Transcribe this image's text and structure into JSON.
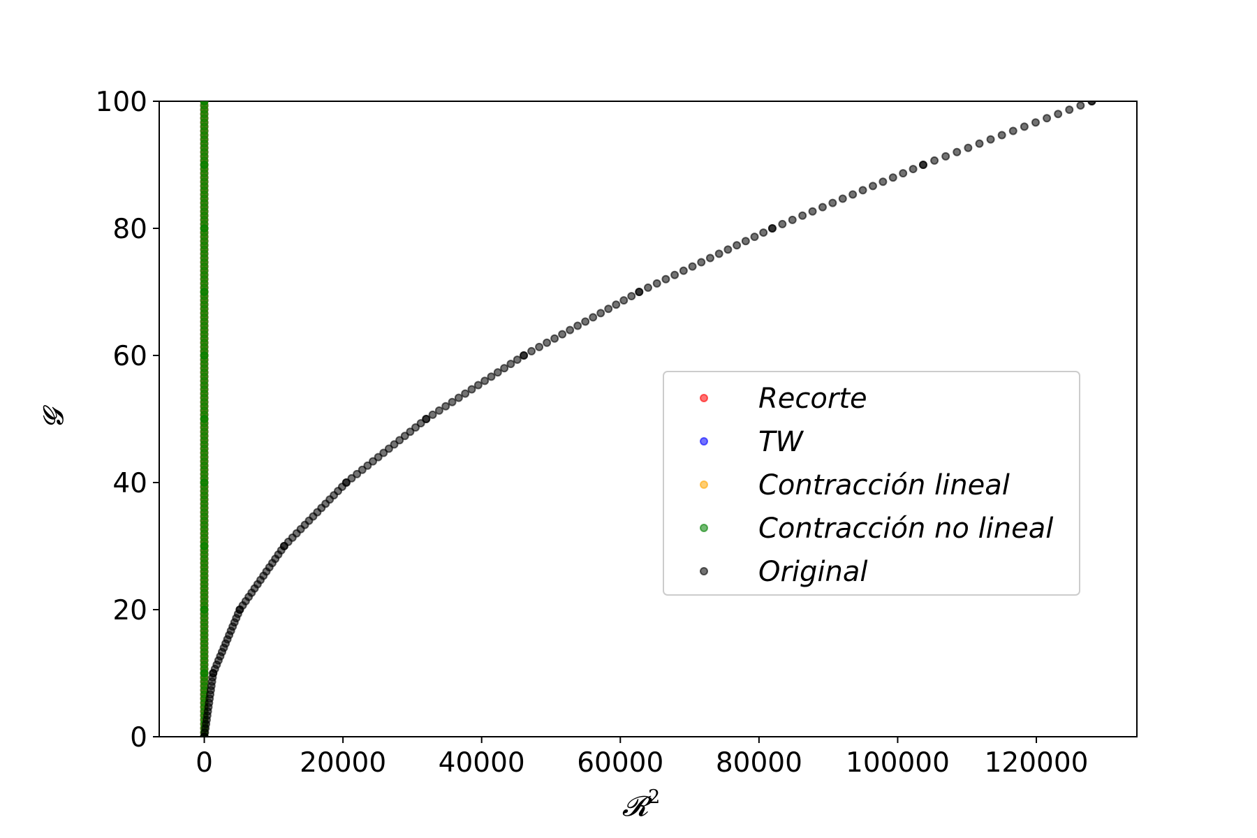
{
  "chart_data": {
    "type": "scatter",
    "xlabel": "𝓡",
    "xlabel_superscript": "2",
    "ylabel": "𝓖",
    "xlim": [
      -6500,
      134500
    ],
    "ylim": [
      0,
      100
    ],
    "xticks": [
      0,
      20000,
      40000,
      60000,
      80000,
      100000,
      120000
    ],
    "xtick_labels": [
      "0",
      "20000",
      "40000",
      "60000",
      "80000",
      "100000",
      "120000"
    ],
    "yticks": [
      0,
      20,
      40,
      60,
      80,
      100
    ],
    "ytick_labels": [
      "0",
      "20",
      "40",
      "60",
      "80",
      "100"
    ],
    "grid": false,
    "legend_position": "center-right",
    "series": [
      {
        "name": "Recorte",
        "color": "#ff0000",
        "x": [
          0,
          0,
          0,
          0,
          0,
          0,
          0,
          0,
          0,
          0,
          0
        ],
        "y": [
          0,
          10,
          20,
          30,
          40,
          50,
          60,
          70,
          80,
          90,
          100
        ]
      },
      {
        "name": "TW",
        "color": "#0000ff",
        "x": [
          0,
          0,
          0,
          0,
          0,
          0,
          0,
          0,
          0,
          0,
          0
        ],
        "y": [
          0,
          10,
          20,
          30,
          40,
          50,
          60,
          70,
          80,
          90,
          100
        ]
      },
      {
        "name": "Contracción lineal",
        "color": "#ffa500",
        "x": [
          0,
          0,
          0,
          0,
          0,
          0,
          0,
          0,
          0,
          0,
          0
        ],
        "y": [
          0,
          10,
          20,
          30,
          40,
          50,
          60,
          70,
          80,
          90,
          100
        ]
      },
      {
        "name": "Contracción no lineal",
        "color": "#008000",
        "x": [
          0,
          0,
          0,
          0,
          0,
          0,
          0,
          0,
          0,
          0,
          0
        ],
        "y": [
          0,
          10,
          20,
          30,
          40,
          50,
          60,
          70,
          80,
          90,
          100
        ]
      },
      {
        "name": "Original",
        "color": "#000000",
        "x": [
          0,
          1280,
          5120,
          11520,
          20480,
          32000,
          46080,
          62720,
          81920,
          103680,
          128000
        ],
        "y": [
          0,
          10,
          20,
          30,
          40,
          50,
          60,
          70,
          80,
          90,
          100
        ]
      }
    ]
  }
}
